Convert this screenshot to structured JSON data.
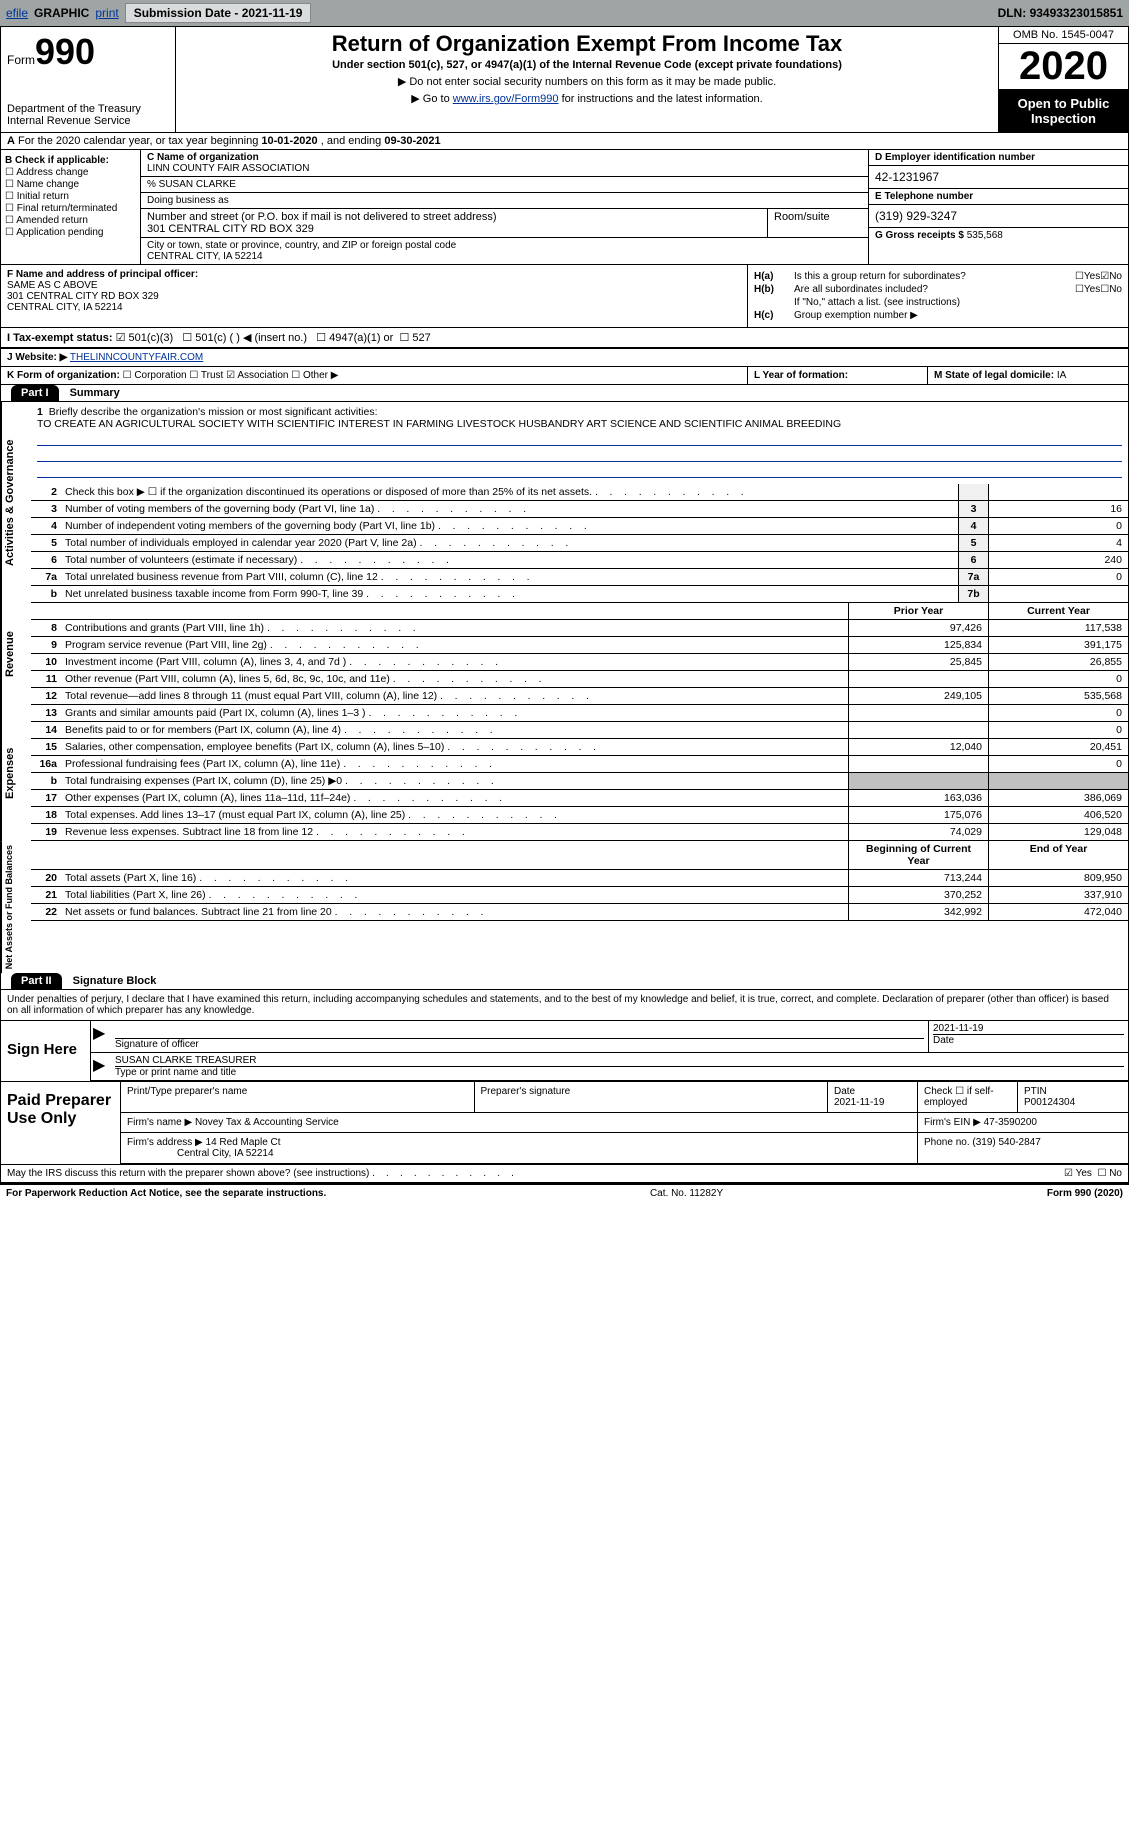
{
  "topbar": {
    "efile": "efile",
    "graphic": "GRAPHIC",
    "print": "print",
    "sub_label": "Submission Date - ",
    "sub_date": "2021-11-19",
    "dln_label": "DLN: ",
    "dln": "93493323015851"
  },
  "header": {
    "form_label": "Form",
    "form_num": "990",
    "dept": "Department of the Treasury\nInternal Revenue Service",
    "title": "Return of Organization Exempt From Income Tax",
    "subtitle": "Under section 501(c), 527, or 4947(a)(1) of the Internal Revenue Code (except private foundations)",
    "note1": "▶ Do not enter social security numbers on this form as it may be made public.",
    "note2_pre": "▶ Go to ",
    "note2_link": "www.irs.gov/Form990",
    "note2_post": " for instructions and the latest information.",
    "omb": "OMB No. 1545-0047",
    "year": "2020",
    "open": "Open to Public Inspection"
  },
  "line_a": {
    "text_pre": "For the 2020 calendar year, or tax year beginning ",
    "begin": "10-01-2020",
    "mid": " , and ending ",
    "end": "09-30-2021"
  },
  "section_b": {
    "label": "B Check if applicable:",
    "items": [
      "Address change",
      "Name change",
      "Initial return",
      "Final return/terminated",
      "Amended return",
      "Application pending"
    ]
  },
  "section_c": {
    "name_label": "C Name of organization",
    "name": "LINN COUNTY FAIR ASSOCIATION",
    "care_of": "% SUSAN CLARKE",
    "dba_label": "Doing business as",
    "addr_label": "Number and street (or P.O. box if mail is not delivered to street address)",
    "room_label": "Room/suite",
    "addr": "301 CENTRAL CITY RD BOX 329",
    "city_label": "City or town, state or province, country, and ZIP or foreign postal code",
    "city": "CENTRAL CITY, IA  52214"
  },
  "section_d": {
    "ein_label": "D Employer identification number",
    "ein": "42-1231967",
    "phone_label": "E Telephone number",
    "phone": "(319) 929-3247",
    "gross_label": "G Gross receipts $ ",
    "gross": "535,568"
  },
  "section_f": {
    "label": "F Name and address of principal officer:",
    "name": "SAME AS C ABOVE",
    "addr1": "301 CENTRAL CITY RD BOX 329",
    "addr2": "CENTRAL CITY, IA  52214"
  },
  "section_h": {
    "a_label": "H(a)",
    "a_text": "Is this a group return for subordinates?",
    "b_label": "H(b)",
    "b_text": "Are all subordinates included?",
    "b_note": "If \"No,\" attach a list. (see instructions)",
    "c_label": "H(c)",
    "c_text": "Group exemption number ▶",
    "yes": "Yes",
    "no": "No"
  },
  "line_i": {
    "label": "I   Tax-exempt status:",
    "opts": [
      "501(c)(3)",
      "501(c) (  ) ◀ (insert no.)",
      "4947(a)(1) or",
      "527"
    ]
  },
  "line_j": {
    "label": "J   Website: ▶",
    "val": "THELINNCOUNTYFAIR.COM"
  },
  "line_k": {
    "label": "K Form of organization:",
    "opts": [
      "Corporation",
      "Trust",
      "Association",
      "Other ▶"
    ]
  },
  "line_l": {
    "label": "L Year of formation:"
  },
  "line_m": {
    "label": "M State of legal domicile: ",
    "val": "IA"
  },
  "part1": {
    "hdr": "Part I",
    "title": "Summary"
  },
  "vlabels": {
    "gov": "Activities & Governance",
    "rev": "Revenue",
    "exp": "Expenses",
    "net": "Net Assets or Fund Balances"
  },
  "mission": {
    "num": "1",
    "label": "Briefly describe the organization's mission or most significant activities:",
    "text": "TO CREATE AN AGRICULTURAL SOCIETY WITH SCIENTIFIC INTEREST IN FARMING LIVESTOCK HUSBANDRY ART SCIENCE AND SCIENTIFIC ANIMAL BREEDING"
  },
  "gov_rows": [
    {
      "n": "2",
      "t": "Check this box ▶ ☐  if the organization discontinued its operations or disposed of more than 25% of its net assets.",
      "b": "",
      "v": ""
    },
    {
      "n": "3",
      "t": "Number of voting members of the governing body (Part VI, line 1a)",
      "b": "3",
      "v": "16"
    },
    {
      "n": "4",
      "t": "Number of independent voting members of the governing body (Part VI, line 1b)",
      "b": "4",
      "v": "0"
    },
    {
      "n": "5",
      "t": "Total number of individuals employed in calendar year 2020 (Part V, line 2a)",
      "b": "5",
      "v": "4"
    },
    {
      "n": "6",
      "t": "Total number of volunteers (estimate if necessary)",
      "b": "6",
      "v": "240"
    },
    {
      "n": "7a",
      "t": "Total unrelated business revenue from Part VIII, column (C), line 12",
      "b": "7a",
      "v": "0"
    },
    {
      "n": "b",
      "t": "Net unrelated business taxable income from Form 990-T, line 39",
      "b": "7b",
      "v": ""
    }
  ],
  "col_hdrs": {
    "prior": "Prior Year",
    "current": "Current Year",
    "begin": "Beginning of Current Year",
    "end": "End of Year"
  },
  "rev_rows": [
    {
      "n": "8",
      "t": "Contributions and grants (Part VIII, line 1h)",
      "p": "97,426",
      "c": "117,538"
    },
    {
      "n": "9",
      "t": "Program service revenue (Part VIII, line 2g)",
      "p": "125,834",
      "c": "391,175"
    },
    {
      "n": "10",
      "t": "Investment income (Part VIII, column (A), lines 3, 4, and 7d )",
      "p": "25,845",
      "c": "26,855"
    },
    {
      "n": "11",
      "t": "Other revenue (Part VIII, column (A), lines 5, 6d, 8c, 9c, 10c, and 11e)",
      "p": "",
      "c": "0"
    },
    {
      "n": "12",
      "t": "Total revenue—add lines 8 through 11 (must equal Part VIII, column (A), line 12)",
      "p": "249,105",
      "c": "535,568"
    }
  ],
  "exp_rows": [
    {
      "n": "13",
      "t": "Grants and similar amounts paid (Part IX, column (A), lines 1–3 )",
      "p": "",
      "c": "0"
    },
    {
      "n": "14",
      "t": "Benefits paid to or for members (Part IX, column (A), line 4)",
      "p": "",
      "c": "0"
    },
    {
      "n": "15",
      "t": "Salaries, other compensation, employee benefits (Part IX, column (A), lines 5–10)",
      "p": "12,040",
      "c": "20,451"
    },
    {
      "n": "16a",
      "t": "Professional fundraising fees (Part IX, column (A), line 11e)",
      "p": "",
      "c": "0"
    },
    {
      "n": "b",
      "t": "Total fundraising expenses (Part IX, column (D), line 25) ▶0",
      "p": "gray",
      "c": "gray"
    },
    {
      "n": "17",
      "t": "Other expenses (Part IX, column (A), lines 11a–11d, 11f–24e)",
      "p": "163,036",
      "c": "386,069"
    },
    {
      "n": "18",
      "t": "Total expenses. Add lines 13–17 (must equal Part IX, column (A), line 25)",
      "p": "175,076",
      "c": "406,520"
    },
    {
      "n": "19",
      "t": "Revenue less expenses. Subtract line 18 from line 12",
      "p": "74,029",
      "c": "129,048"
    }
  ],
  "net_rows": [
    {
      "n": "20",
      "t": "Total assets (Part X, line 16)",
      "p": "713,244",
      "c": "809,950"
    },
    {
      "n": "21",
      "t": "Total liabilities (Part X, line 26)",
      "p": "370,252",
      "c": "337,910"
    },
    {
      "n": "22",
      "t": "Net assets or fund balances. Subtract line 21 from line 20",
      "p": "342,992",
      "c": "472,040"
    }
  ],
  "part2": {
    "hdr": "Part II",
    "title": "Signature Block"
  },
  "sig": {
    "decl": "Under penalties of perjury, I declare that I have examined this return, including accompanying schedules and statements, and to the best of my knowledge and belief, it is true, correct, and complete. Declaration of preparer (other than officer) is based on all information of which preparer has any knowledge.",
    "sign_here": "Sign Here",
    "sig_officer": "Signature of officer",
    "date_label": "Date",
    "date": "2021-11-19",
    "name": "SUSAN CLARKE TREASURER",
    "name_label": "Type or print name and title"
  },
  "prep": {
    "label": "Paid Preparer Use Only",
    "print_name": "Print/Type preparer's name",
    "prep_sig": "Preparer's signature",
    "date_label": "Date",
    "date": "2021-11-19",
    "check_label": "Check ☐ if self-employed",
    "ptin_label": "PTIN",
    "ptin": "P00124304",
    "firm_name_label": "Firm's name   ▶",
    "firm_name": "Novey Tax & Accounting Service",
    "firm_ein_label": "Firm's EIN ▶",
    "firm_ein": "47-3590200",
    "firm_addr_label": "Firm's address ▶",
    "firm_addr1": "14 Red Maple Ct",
    "firm_addr2": "Central City, IA  52214",
    "phone_label": "Phone no. ",
    "phone": "(319) 540-2847"
  },
  "footer": {
    "discuss": "May the IRS discuss this return with the preparer shown above? (see instructions)",
    "yes": "Yes",
    "no": "No"
  },
  "bottom": {
    "pra": "For Paperwork Reduction Act Notice, see the separate instructions.",
    "cat": "Cat. No. 11282Y",
    "form": "Form 990 (2020)"
  },
  "colors": {
    "topbar_bg": "#9fa5a5",
    "link": "#003399",
    "black": "#000000",
    "gray_cell": "#c0c0c0"
  }
}
